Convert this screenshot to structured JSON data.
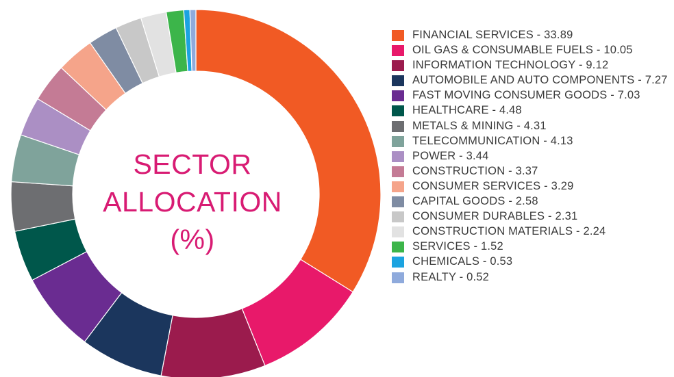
{
  "chart_data": {
    "type": "pie",
    "donut": true,
    "title": "SECTOR ALLOCATION (%)",
    "title_lines": [
      "SECTOR",
      "ALLOCATION",
      "(%)"
    ],
    "legend_position": "right",
    "slices": [
      {
        "label": "FINANCIAL SERVICES",
        "value": 33.89,
        "legend_text": "FINANCIAL SERVICES - 33.89",
        "color": "#f15a24"
      },
      {
        "label": "OIL GAS & CONSUMABLE FUELS",
        "value": 10.05,
        "legend_text": "OIL GAS & CONSUMABLE FUELS - 10.05",
        "color": "#e8196a"
      },
      {
        "label": "INFORMATION TECHNOLOGY",
        "value": 9.12,
        "legend_text": "INFORMATION TECHNOLOGY - 9.12",
        "color": "#9b1b4d"
      },
      {
        "label": "AUTOMOBILE AND AUTO COMPONENTS",
        "value": 7.27,
        "legend_text": "AUTOMOBILE AND AUTO COMPONENTS - 7.27",
        "color": "#1b365d"
      },
      {
        "label": "FAST MOVING CONSUMER GOODS",
        "value": 7.03,
        "legend_text": "FAST MOVING CONSUMER GOODS - 7.03",
        "color": "#6a2c91"
      },
      {
        "label": "HEALTHCARE",
        "value": 4.48,
        "legend_text": "HEALTHCARE - 4.48",
        "color": "#00574b"
      },
      {
        "label": "METALS & MINING",
        "value": 4.31,
        "legend_text": "METALS & MINING - 4.31",
        "color": "#6d6e71"
      },
      {
        "label": "TELECOMMUNICATION",
        "value": 4.13,
        "legend_text": "TELECOMMUNICATION - 4.13",
        "color": "#7fa39b"
      },
      {
        "label": "POWER",
        "value": 3.44,
        "legend_text": "POWER - 3.44",
        "color": "#ab8fc4"
      },
      {
        "label": "CONSTRUCTION",
        "value": 3.37,
        "legend_text": "CONSTRUCTION - 3.37",
        "color": "#c47b95"
      },
      {
        "label": "CONSUMER SERVICES",
        "value": 3.29,
        "legend_text": "CONSUMER SERVICES - 3.29",
        "color": "#f5a48a"
      },
      {
        "label": "CAPITAL GOODS",
        "value": 2.58,
        "legend_text": "CAPITAL GOODS - 2.58",
        "color": "#7f8ca3"
      },
      {
        "label": "CONSUMER DURABLES",
        "value": 2.31,
        "legend_text": "CONSUMER DURABLES - 2.31",
        "color": "#c8c8c8"
      },
      {
        "label": "CONSTRUCTION MATERIALS",
        "value": 2.24,
        "legend_text": "CONSTRUCTION MATERIALS - 2.24",
        "color": "#e2e2e2"
      },
      {
        "label": "SERVICES",
        "value": 1.52,
        "legend_text": "SERVICES - 1.52",
        "color": "#3cb54a"
      },
      {
        "label": "CHEMICALS",
        "value": 0.53,
        "legend_text": "CHEMICALS - 0.53",
        "color": "#1ba3e0"
      },
      {
        "label": "REALTY",
        "value": 0.52,
        "legend_text": "REALTY - 0.52",
        "color": "#8faadc"
      }
    ]
  }
}
